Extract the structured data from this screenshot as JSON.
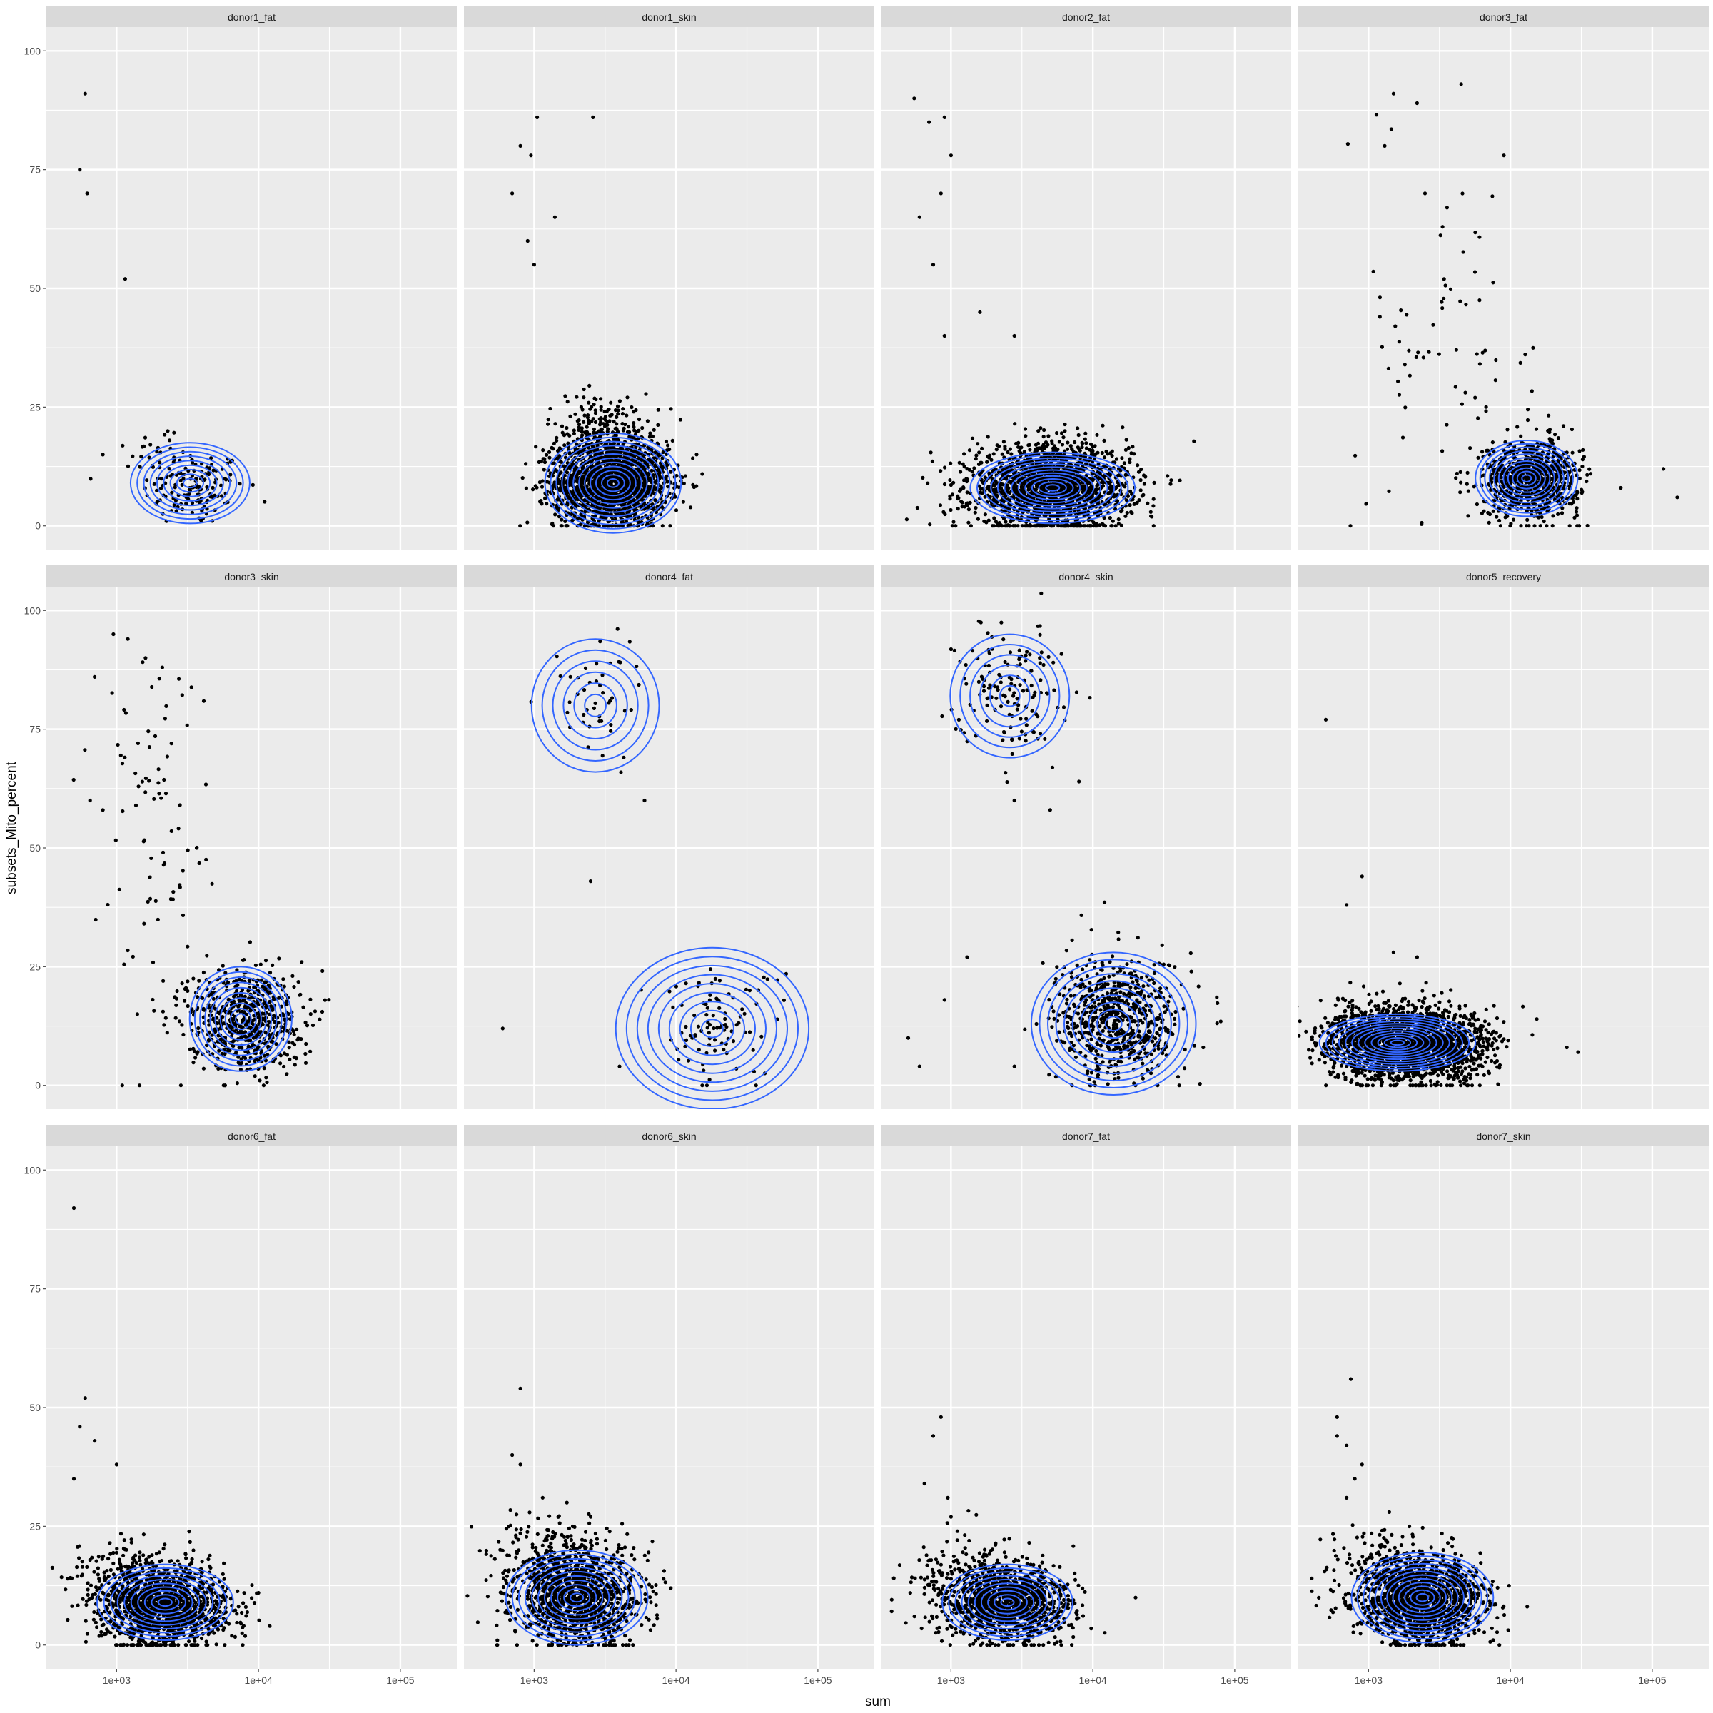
{
  "chart_data": {
    "type": "scatter",
    "layout": "facet-grid",
    "xlabel": "sum",
    "ylabel": "subsets_Mito_percent",
    "x_scale": "log10",
    "xlim": [
      320,
      250000
    ],
    "ylim": [
      -5,
      105
    ],
    "x_ticks": [
      1000,
      10000,
      100000
    ],
    "x_tick_labels": [
      "1e+03",
      "1e+04",
      "1e+05"
    ],
    "y_ticks": [
      0,
      25,
      50,
      75,
      100
    ],
    "y_tick_labels": [
      "0",
      "25",
      "50",
      "75",
      "100"
    ],
    "grid": true,
    "overlay": "2d density contours",
    "colors": {
      "panel_bg": "#ebebeb",
      "strip_bg": "#d9d9d9",
      "grid": "#ffffff",
      "points": "#000000",
      "contour": "#3366ff",
      "text": "#1a1a1a",
      "axis_text": "#4d4d4d"
    },
    "facets": [
      {
        "name": "donor1_fat",
        "n": 160,
        "clusters": [
          {
            "x": 3500,
            "y": 8,
            "sx": 0.18,
            "sy": 4,
            "w": 0.85
          },
          {
            "x": 2000,
            "y": 16,
            "sx": 0.12,
            "sy": 3,
            "w": 0.15
          }
        ],
        "outliers": [
          [
            600,
            91
          ],
          [
            550,
            75
          ],
          [
            620,
            70
          ],
          [
            1150,
            52
          ],
          [
            800,
            15
          ]
        ],
        "contours": [
          {
            "cx": 3300,
            "cy": 9,
            "rx": 0.42,
            "ry": 8.5,
            "levels": 9
          }
        ]
      },
      {
        "name": "donor1_skin",
        "n": 2000,
        "clusters": [
          {
            "x": 3500,
            "y": 9,
            "sx": 0.2,
            "sy": 4.5,
            "w": 0.9
          },
          {
            "x": 3000,
            "y": 20,
            "sx": 0.2,
            "sy": 4,
            "w": 0.1
          }
        ],
        "outliers": [
          [
            800,
            80
          ],
          [
            950,
            78
          ],
          [
            1050,
            86
          ],
          [
            2600,
            86
          ],
          [
            700,
            70
          ],
          [
            900,
            60
          ],
          [
            1400,
            65
          ],
          [
            1000,
            55
          ]
        ],
        "contours": [
          {
            "cx": 3600,
            "cy": 9,
            "rx": 0.48,
            "ry": 10.5,
            "levels": 12
          }
        ]
      },
      {
        "name": "donor2_fat",
        "n": 1800,
        "clusters": [
          {
            "x": 5000,
            "y": 8,
            "sx": 0.28,
            "sy": 4.5,
            "w": 1
          }
        ],
        "outliers": [
          [
            550,
            90
          ],
          [
            700,
            85
          ],
          [
            900,
            86
          ],
          [
            1000,
            78
          ],
          [
            600,
            65
          ],
          [
            850,
            70
          ],
          [
            750,
            55
          ],
          [
            900,
            40
          ],
          [
            1600,
            45
          ],
          [
            2800,
            40
          ]
        ],
        "contours": [
          {
            "cx": 5200,
            "cy": 8,
            "rx": 0.58,
            "ry": 7.5,
            "levels": 12
          }
        ]
      },
      {
        "name": "donor3_fat",
        "n": 900,
        "clusters": [
          {
            "x": 14000,
            "y": 10,
            "sx": 0.17,
            "sy": 4,
            "w": 0.92
          },
          {
            "x": 4000,
            "y": 40,
            "sx": 0.3,
            "sy": 20,
            "w": 0.08
          }
        ],
        "outliers": [
          [
            1500,
            91
          ],
          [
            2200,
            89
          ],
          [
            4500,
            93
          ],
          [
            9000,
            78
          ],
          [
            1300,
            80
          ],
          [
            2500,
            70
          ],
          [
            150000,
            6
          ],
          [
            120000,
            12
          ],
          [
            60000,
            8
          ]
        ],
        "contours": [
          {
            "cx": 13000,
            "cy": 10,
            "rx": 0.36,
            "ry": 8,
            "levels": 11
          }
        ]
      },
      {
        "name": "donor3_skin",
        "n": 700,
        "clusters": [
          {
            "x": 8000,
            "y": 14,
            "sx": 0.2,
            "sy": 5.5,
            "w": 0.88
          },
          {
            "x": 1800,
            "y": 55,
            "sx": 0.2,
            "sy": 20,
            "w": 0.12
          }
        ],
        "outliers": [
          [
            950,
            95
          ],
          [
            1200,
            94
          ],
          [
            1600,
            90
          ],
          [
            2100,
            88
          ],
          [
            700,
            86
          ],
          [
            650,
            60
          ],
          [
            800,
            58
          ],
          [
            1400,
            15
          ]
        ],
        "contours": [
          {
            "cx": 7500,
            "cy": 14,
            "rx": 0.36,
            "ry": 11,
            "levels": 10
          }
        ]
      },
      {
        "name": "donor4_fat",
        "n": 140,
        "clusters": [
          {
            "x": 20000,
            "y": 13,
            "sx": 0.22,
            "sy": 6,
            "w": 0.68
          },
          {
            "x": 2800,
            "y": 82,
            "sx": 0.16,
            "sy": 7,
            "w": 0.32
          }
        ],
        "outliers": [
          [
            600,
            12
          ],
          [
            6000,
            60
          ],
          [
            2500,
            43
          ],
          [
            4000,
            4
          ]
        ],
        "contours": [
          {
            "cx": 18000,
            "cy": 12,
            "rx": 0.68,
            "ry": 17,
            "levels": 9
          },
          {
            "cx": 2700,
            "cy": 80,
            "rx": 0.45,
            "ry": 14,
            "levels": 6
          }
        ]
      },
      {
        "name": "donor4_skin",
        "n": 800,
        "clusters": [
          {
            "x": 15000,
            "y": 14,
            "sx": 0.22,
            "sy": 6.5,
            "w": 0.82
          },
          {
            "x": 2600,
            "y": 84,
            "sx": 0.18,
            "sy": 7,
            "w": 0.18
          }
        ],
        "outliers": [
          [
            600,
            4
          ],
          [
            500,
            10
          ],
          [
            1300,
            27
          ],
          [
            900,
            18
          ],
          [
            2800,
            4
          ],
          [
            60000,
            8
          ],
          [
            2800,
            60
          ],
          [
            5000,
            58
          ]
        ],
        "contours": [
          {
            "cx": 14000,
            "cy": 13,
            "rx": 0.58,
            "ry": 15,
            "levels": 10
          },
          {
            "cx": 2600,
            "cy": 82,
            "rx": 0.42,
            "ry": 13,
            "levels": 6
          }
        ]
      },
      {
        "name": "donor5_recovery",
        "n": 2200,
        "clusters": [
          {
            "x": 1500,
            "y": 9,
            "sx": 0.25,
            "sy": 4,
            "w": 0.65
          },
          {
            "x": 3000,
            "y": 8,
            "sx": 0.22,
            "sy": 3.5,
            "w": 0.35
          }
        ],
        "outliers": [
          [
            500,
            77
          ],
          [
            900,
            44
          ],
          [
            700,
            38
          ],
          [
            1500,
            28
          ],
          [
            2200,
            27
          ],
          [
            25000,
            8
          ],
          [
            30000,
            7
          ]
        ],
        "contours": [
          {
            "cx": 1600,
            "cy": 9,
            "rx": 0.55,
            "ry": 6,
            "levels": 12
          }
        ]
      },
      {
        "name": "donor6_fat",
        "n": 1500,
        "clusters": [
          {
            "x": 2200,
            "y": 8,
            "sx": 0.22,
            "sy": 4.2,
            "w": 0.9
          },
          {
            "x": 1200,
            "y": 15,
            "sx": 0.2,
            "sy": 4,
            "w": 0.1
          }
        ],
        "outliers": [
          [
            500,
            92
          ],
          [
            600,
            52
          ],
          [
            550,
            46
          ],
          [
            700,
            43
          ],
          [
            1000,
            38
          ],
          [
            500,
            35
          ],
          [
            12000,
            4
          ],
          [
            10000,
            11
          ]
        ],
        "contours": [
          {
            "cx": 2200,
            "cy": 9,
            "rx": 0.48,
            "ry": 8,
            "levels": 10
          }
        ]
      },
      {
        "name": "donor6_skin",
        "n": 1300,
        "clusters": [
          {
            "x": 2000,
            "y": 10,
            "sx": 0.22,
            "sy": 5,
            "w": 0.9
          },
          {
            "x": 1200,
            "y": 20,
            "sx": 0.2,
            "sy": 4,
            "w": 0.1
          }
        ],
        "outliers": [
          [
            800,
            54
          ],
          [
            700,
            40
          ],
          [
            800,
            38
          ],
          [
            1700,
            30
          ],
          [
            2500,
            27
          ]
        ],
        "contours": [
          {
            "cx": 2000,
            "cy": 10,
            "rx": 0.5,
            "ry": 10,
            "levels": 11
          }
        ]
      },
      {
        "name": "donor7_fat",
        "n": 1300,
        "clusters": [
          {
            "x": 2500,
            "y": 8.5,
            "sx": 0.22,
            "sy": 4,
            "w": 0.9
          },
          {
            "x": 1200,
            "y": 15,
            "sx": 0.2,
            "sy": 4.5,
            "w": 0.1
          }
        ],
        "outliers": [
          [
            850,
            48
          ],
          [
            750,
            44
          ],
          [
            650,
            34
          ],
          [
            950,
            31
          ],
          [
            1000,
            27
          ],
          [
            20000,
            10
          ]
        ],
        "contours": [
          {
            "cx": 2500,
            "cy": 9,
            "rx": 0.46,
            "ry": 8,
            "levels": 10
          }
        ]
      },
      {
        "name": "donor7_skin",
        "n": 1600,
        "clusters": [
          {
            "x": 2400,
            "y": 9.5,
            "sx": 0.22,
            "sy": 4.5,
            "w": 0.9
          },
          {
            "x": 1300,
            "y": 15,
            "sx": 0.18,
            "sy": 4.5,
            "w": 0.1
          }
        ],
        "outliers": [
          [
            750,
            56
          ],
          [
            600,
            48
          ],
          [
            600,
            44
          ],
          [
            700,
            42
          ],
          [
            900,
            38
          ],
          [
            800,
            35
          ],
          [
            700,
            31
          ],
          [
            1400,
            28
          ]
        ],
        "contours": [
          {
            "cx": 2400,
            "cy": 10,
            "rx": 0.5,
            "ry": 9.5,
            "levels": 12
          }
        ]
      }
    ]
  }
}
